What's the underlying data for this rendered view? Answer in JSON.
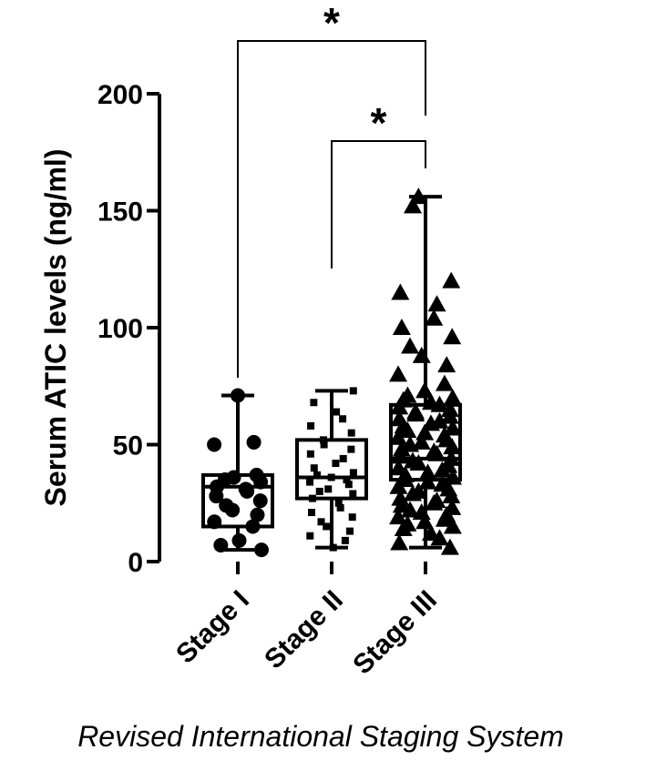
{
  "chart_data": {
    "type": "box",
    "title": "",
    "xlabel": "Revised International Staging System",
    "ylabel": "Serum ATIC levels (ng/ml)",
    "ylim": [
      0,
      200
    ],
    "yticks": [
      0,
      50,
      100,
      150,
      200
    ],
    "categories": [
      "Stage I",
      "Stage II",
      "Stage III"
    ],
    "marker_shapes": [
      "circle",
      "square",
      "triangle"
    ],
    "color": "#000000",
    "grid": false,
    "legend": "none",
    "boxes": [
      {
        "name": "Stage I",
        "min": 5,
        "q1": 15,
        "median": 32,
        "q3": 37,
        "max": 71
      },
      {
        "name": "Stage II",
        "min": 6,
        "q1": 27,
        "median": 36,
        "q3": 52,
        "max": 73
      },
      {
        "name": "Stage III",
        "min": 6,
        "q1": 35,
        "median": 44,
        "q3": 67,
        "max": 156
      }
    ],
    "points": [
      [
        71,
        51,
        50,
        37,
        36,
        35,
        34,
        32,
        31,
        30,
        28,
        26,
        24,
        22,
        20,
        17,
        15,
        9,
        7,
        5
      ],
      [
        73,
        68,
        64,
        61,
        58,
        55,
        52,
        50,
        48,
        46,
        44,
        42,
        40,
        38,
        37,
        36,
        35,
        34,
        33,
        31,
        30,
        29,
        27,
        25,
        23,
        21,
        19,
        17,
        15,
        13,
        11,
        9,
        6
      ],
      [
        156,
        152,
        120,
        115,
        110,
        104,
        100,
        96,
        92,
        88,
        84,
        80,
        76,
        73,
        71,
        70,
        69,
        68,
        67,
        66,
        65,
        64,
        63,
        62,
        61,
        60,
        59,
        58,
        57,
        56,
        55,
        54,
        53,
        52,
        51,
        50,
        49,
        48,
        47,
        46,
        45,
        44,
        43,
        42,
        41,
        40,
        39,
        38,
        37,
        36,
        35,
        34,
        33,
        32,
        31,
        30,
        29,
        28,
        27,
        26,
        25,
        24,
        23,
        22,
        21,
        20,
        19,
        18,
        17,
        16,
        15,
        14,
        12,
        10,
        8,
        6
      ]
    ],
    "significance": [
      {
        "from": "Stage I",
        "to": "Stage III",
        "label": "*"
      },
      {
        "from": "Stage II",
        "to": "Stage III",
        "label": "*"
      }
    ]
  }
}
